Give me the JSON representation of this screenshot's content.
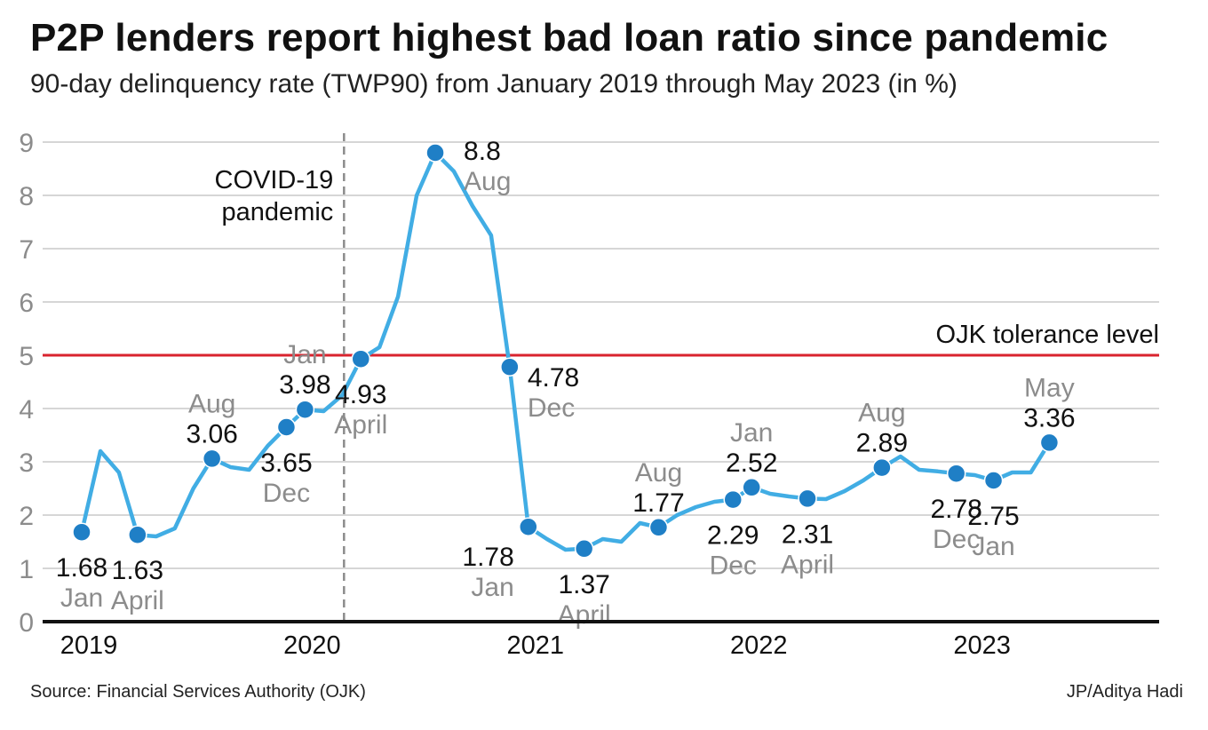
{
  "chart_data": {
    "type": "line",
    "title": "P2P lenders report highest bad loan ratio since pandemic",
    "subtitle": "90-day delinquency rate (TWP90) from January 2019 through May 2023 (in %)",
    "ylim": [
      0,
      9
    ],
    "yticks": [
      "0",
      "1",
      "2",
      "3",
      "4",
      "5",
      "6",
      "7",
      "8",
      "9"
    ],
    "xlabels": [
      {
        "text": "2019",
        "x": "2019-01"
      },
      {
        "text": "2020",
        "x": "2020-01"
      },
      {
        "text": "2021",
        "x": "2021-01"
      },
      {
        "text": "2022",
        "x": "2022-01"
      },
      {
        "text": "2023",
        "x": "2023-01"
      }
    ],
    "grid": true,
    "series": [
      {
        "color": "#41ade4",
        "points": [
          {
            "x": "2019-01",
            "y": 1.68
          },
          {
            "x": "2019-02",
            "y": 3.2
          },
          {
            "x": "2019-03",
            "y": 2.8
          },
          {
            "x": "2019-04",
            "y": 1.63
          },
          {
            "x": "2019-05",
            "y": 1.6
          },
          {
            "x": "2019-06",
            "y": 1.75
          },
          {
            "x": "2019-07",
            "y": 2.5
          },
          {
            "x": "2019-08",
            "y": 3.06
          },
          {
            "x": "2019-09",
            "y": 2.9
          },
          {
            "x": "2019-10",
            "y": 2.85
          },
          {
            "x": "2019-11",
            "y": 3.3
          },
          {
            "x": "2019-12",
            "y": 3.65
          },
          {
            "x": "2020-01",
            "y": 3.98
          },
          {
            "x": "2020-02",
            "y": 3.95
          },
          {
            "x": "2020-03",
            "y": 4.25
          },
          {
            "x": "2020-04",
            "y": 4.93
          },
          {
            "x": "2020-05",
            "y": 5.15
          },
          {
            "x": "2020-06",
            "y": 6.1
          },
          {
            "x": "2020-07",
            "y": 8.0
          },
          {
            "x": "2020-08",
            "y": 8.8
          },
          {
            "x": "2020-09",
            "y": 8.45
          },
          {
            "x": "2020-10",
            "y": 7.8
          },
          {
            "x": "2020-11",
            "y": 7.25
          },
          {
            "x": "2020-12",
            "y": 4.78
          },
          {
            "x": "2021-01",
            "y": 1.78
          },
          {
            "x": "2021-02",
            "y": 1.55
          },
          {
            "x": "2021-03",
            "y": 1.35
          },
          {
            "x": "2021-04",
            "y": 1.37
          },
          {
            "x": "2021-05",
            "y": 1.55
          },
          {
            "x": "2021-06",
            "y": 1.5
          },
          {
            "x": "2021-07",
            "y": 1.85
          },
          {
            "x": "2021-08",
            "y": 1.77
          },
          {
            "x": "2021-09",
            "y": 2.0
          },
          {
            "x": "2021-10",
            "y": 2.15
          },
          {
            "x": "2021-11",
            "y": 2.25
          },
          {
            "x": "2021-12",
            "y": 2.29
          },
          {
            "x": "2022-01",
            "y": 2.52
          },
          {
            "x": "2022-02",
            "y": 2.4
          },
          {
            "x": "2022-03",
            "y": 2.35
          },
          {
            "x": "2022-04",
            "y": 2.31
          },
          {
            "x": "2022-05",
            "y": 2.3
          },
          {
            "x": "2022-06",
            "y": 2.45
          },
          {
            "x": "2022-07",
            "y": 2.65
          },
          {
            "x": "2022-08",
            "y": 2.89
          },
          {
            "x": "2022-09",
            "y": 3.1
          },
          {
            "x": "2022-10",
            "y": 2.85
          },
          {
            "x": "2022-11",
            "y": 2.82
          },
          {
            "x": "2022-12",
            "y": 2.78
          },
          {
            "x": "2023-01",
            "y": 2.75
          },
          {
            "x": "2023-02",
            "y": 2.65
          },
          {
            "x": "2023-03",
            "y": 2.8
          },
          {
            "x": "2023-04",
            "y": 2.8
          },
          {
            "x": "2023-05",
            "y": 3.36
          }
        ]
      }
    ],
    "labeled_points": [
      {
        "x": "2019-01",
        "value": "1.68",
        "month": "Jan",
        "pos": "below"
      },
      {
        "x": "2019-04",
        "value": "1.63",
        "month": "April",
        "pos": "below"
      },
      {
        "x": "2019-08",
        "value": "3.06",
        "month": "Aug",
        "pos": "above"
      },
      {
        "x": "2019-12",
        "value": "3.65",
        "month": "Dec",
        "pos": "below"
      },
      {
        "x": "2020-01",
        "value": "3.98",
        "month": "Jan",
        "pos": "above"
      },
      {
        "x": "2020-04",
        "value": "4.93",
        "month": "April",
        "pos": "below"
      },
      {
        "x": "2020-08",
        "value": "8.8",
        "month": "Aug",
        "pos": "right"
      },
      {
        "x": "2020-12",
        "value": "4.78",
        "month": "Dec",
        "pos": "below-right"
      },
      {
        "x": "2021-01",
        "value": "1.78",
        "month": "Jan",
        "pos": "below-left"
      },
      {
        "x": "2021-04",
        "value": "1.37",
        "month": "April",
        "pos": "below"
      },
      {
        "x": "2021-08",
        "value": "1.77",
        "month": "Aug",
        "pos": "above"
      },
      {
        "x": "2021-12",
        "value": "2.29",
        "month": "Dec",
        "pos": "below"
      },
      {
        "x": "2022-01",
        "value": "2.52",
        "month": "Jan",
        "pos": "above"
      },
      {
        "x": "2022-04",
        "value": "2.31",
        "month": "April",
        "pos": "below"
      },
      {
        "x": "2022-08",
        "value": "2.89",
        "month": "Aug",
        "pos": "above"
      },
      {
        "x": "2022-12",
        "value": "2.78",
        "month": "Dec",
        "pos": "below"
      },
      {
        "x": "2023-02",
        "value": "2.75",
        "month": "Jan",
        "pos": "below"
      },
      {
        "x": "2023-05",
        "value": "3.36",
        "month": "May",
        "pos": "above"
      }
    ],
    "reference_line": {
      "y": 5,
      "label": "OJK tolerance level",
      "color": "#d9232e"
    },
    "event_line": {
      "x": "2020-03",
      "label_lines": [
        "COVID-19",
        "pandemic"
      ],
      "style": "dashed"
    }
  },
  "footer": {
    "source": "Source: Financial Services Authority (OJK)",
    "credit": "JP/Aditya Hadi"
  }
}
